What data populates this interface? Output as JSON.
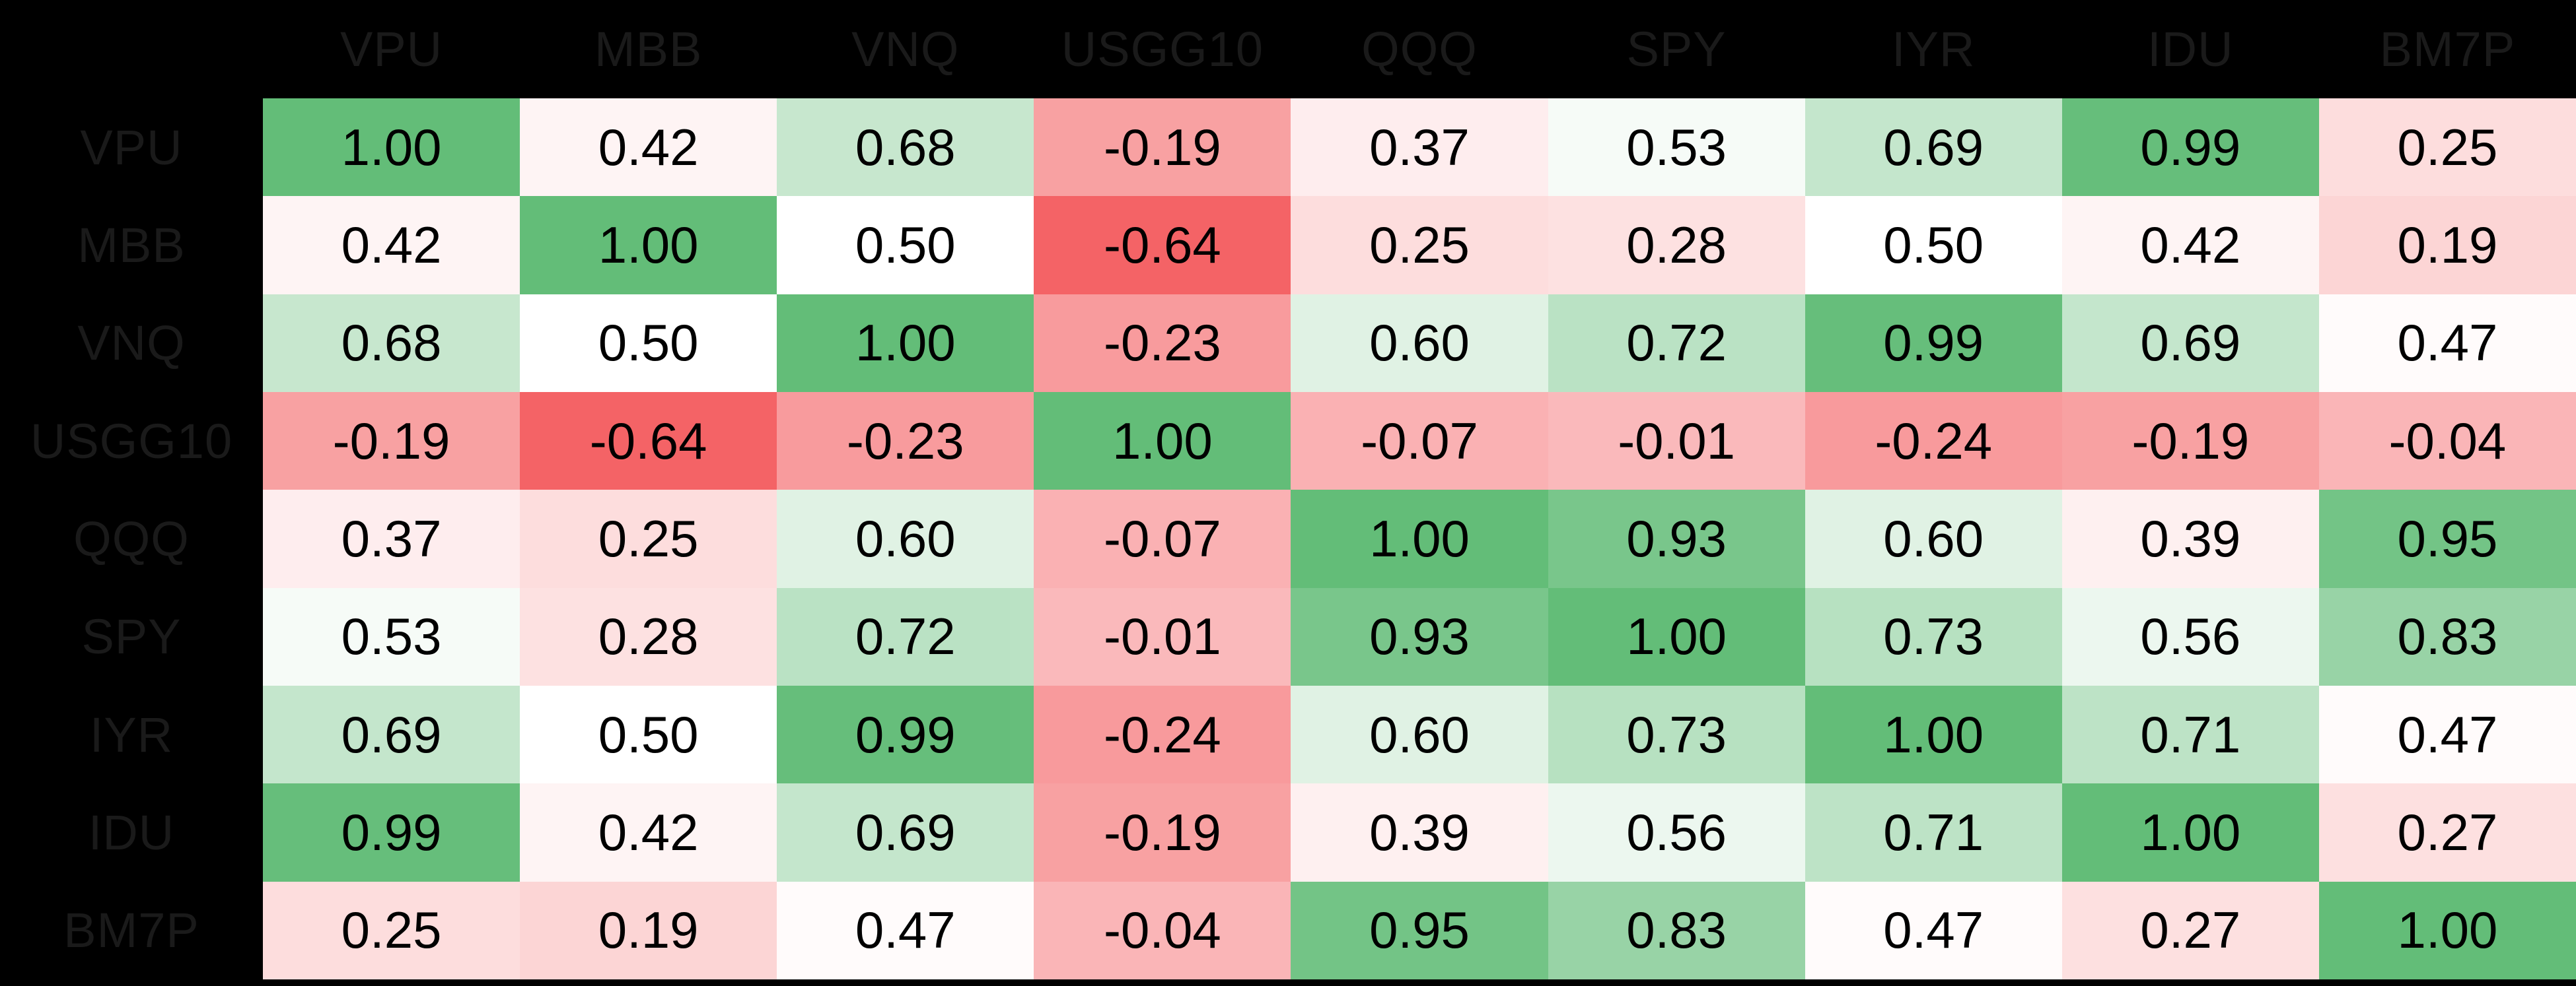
{
  "chart_data": {
    "type": "heatmap",
    "title": "",
    "xlabel": "",
    "ylabel": "",
    "categories": [
      "VPU",
      "MBB",
      "VNQ",
      "USGG10",
      "QQQ",
      "SPY",
      "IYR",
      "IDU",
      "BM7P"
    ],
    "matrix": [
      [
        1.0,
        0.42,
        0.68,
        -0.19,
        0.37,
        0.53,
        0.69,
        0.99,
        0.25
      ],
      [
        0.42,
        1.0,
        0.5,
        -0.64,
        0.25,
        0.28,
        0.5,
        0.42,
        0.19
      ],
      [
        0.68,
        0.5,
        1.0,
        -0.23,
        0.6,
        0.72,
        0.99,
        0.69,
        0.47
      ],
      [
        -0.19,
        -0.64,
        -0.23,
        1.0,
        -0.07,
        -0.01,
        -0.24,
        -0.19,
        -0.04
      ],
      [
        0.37,
        0.25,
        0.6,
        -0.07,
        1.0,
        0.93,
        0.6,
        0.39,
        0.95
      ],
      [
        0.53,
        0.28,
        0.72,
        -0.01,
        0.93,
        1.0,
        0.73,
        0.56,
        0.83
      ],
      [
        0.69,
        0.5,
        0.99,
        -0.24,
        0.6,
        0.73,
        1.0,
        0.71,
        0.47
      ],
      [
        0.99,
        0.42,
        0.69,
        -0.19,
        0.39,
        0.56,
        0.71,
        1.0,
        0.27
      ],
      [
        0.25,
        0.19,
        0.47,
        -0.04,
        0.95,
        0.83,
        0.47,
        0.27,
        1.0
      ]
    ],
    "value_decimals": 2,
    "legend": "none",
    "grid": false,
    "colors": {
      "background": "#000000",
      "label_text": "#1a1a1a",
      "cell_text": "#000000",
      "midpoint_color": "#ffffff",
      "max_green": "#63bd78",
      "min_red": "#f46366"
    },
    "color_scale": {
      "white_at_value": 0.5,
      "full_green_at_value": 1.0,
      "full_red_at_value": -0.64
    }
  }
}
